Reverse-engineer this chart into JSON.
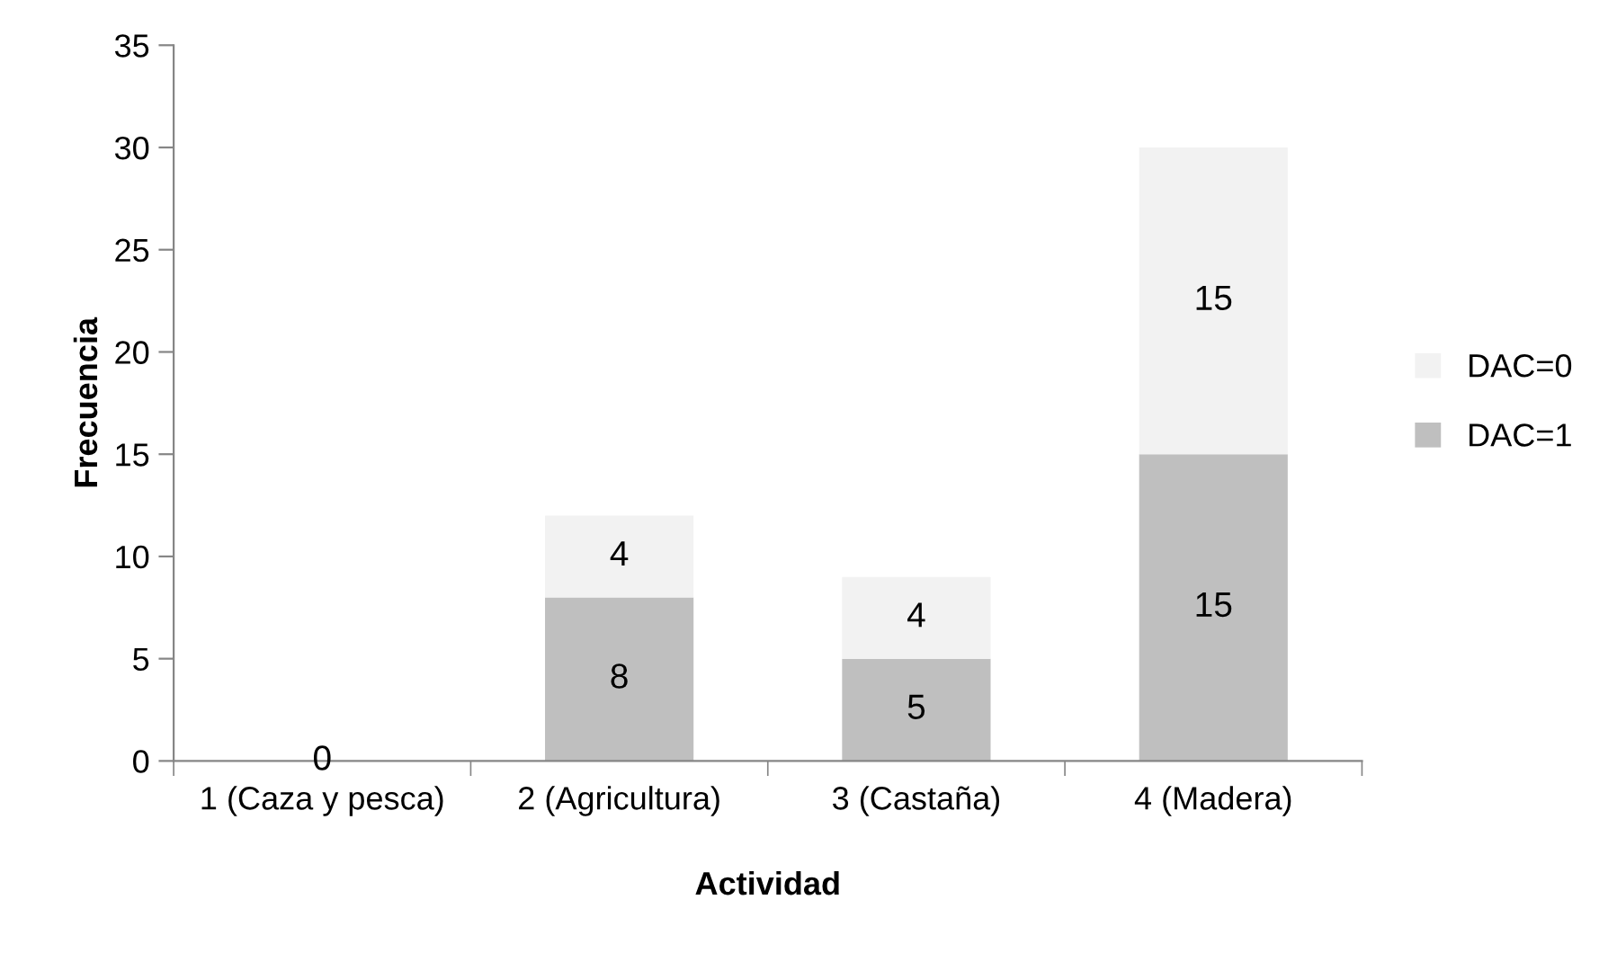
{
  "chart_data": {
    "type": "bar",
    "stacked": true,
    "xlabel": "Actividad",
    "ylabel": "Frecuencia",
    "categories": [
      "1 (Caza y pesca)",
      "2 (Agricultura)",
      "3 (Castaña)",
      "4 (Madera)"
    ],
    "series": [
      {
        "name": "DAC=1",
        "color": "#bfbfbf",
        "values": [
          0,
          8,
          5,
          15
        ],
        "value_labels": [
          "0",
          "8",
          "5",
          "15"
        ]
      },
      {
        "name": "DAC=0",
        "color": "#f2f2f2",
        "values": [
          0,
          4,
          4,
          15
        ],
        "value_labels": [
          null,
          "4",
          "4",
          "15"
        ]
      }
    ],
    "ylim": [
      0,
      35
    ],
    "yticks": [
      0,
      5,
      10,
      15,
      20,
      25,
      30,
      35
    ],
    "legend": "right",
    "grid": false
  }
}
